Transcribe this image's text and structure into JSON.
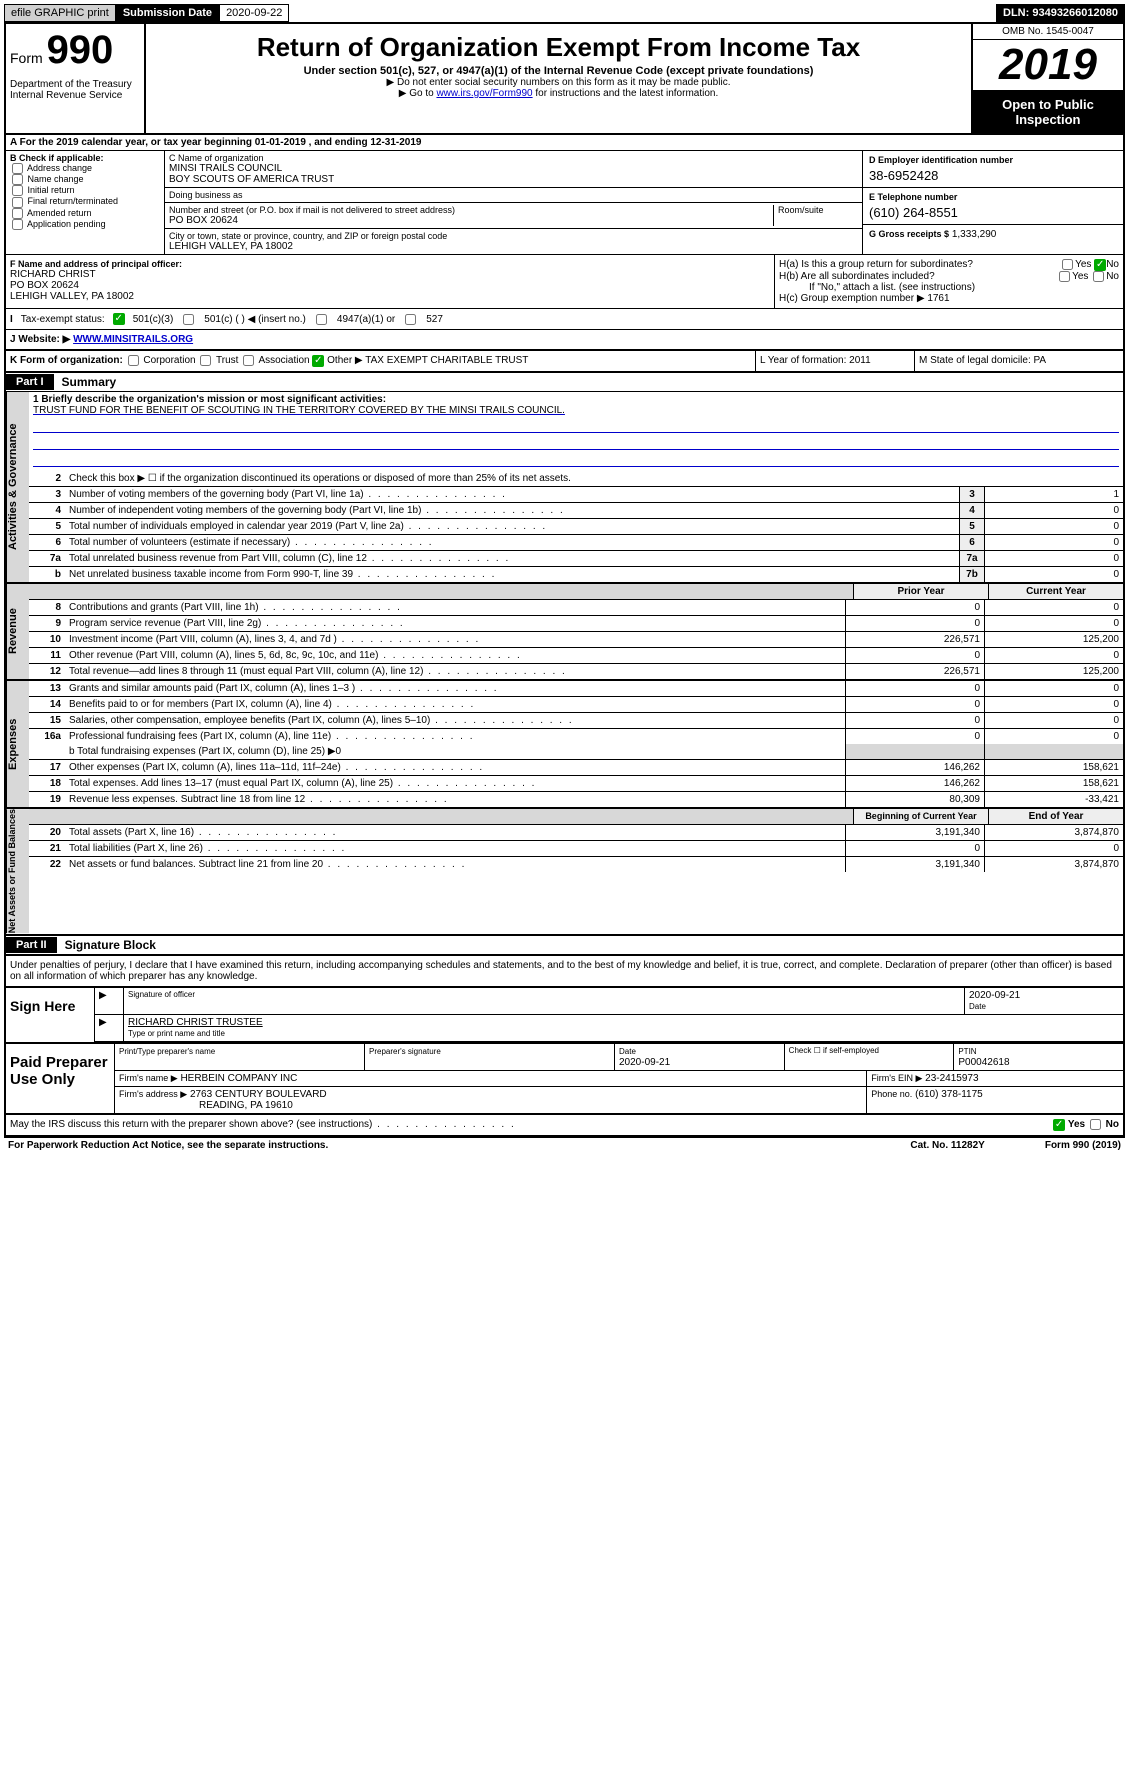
{
  "topbar": {
    "efile": "efile GRAPHIC print",
    "submit_label": "Submission Date",
    "submit_date": "2020-09-22",
    "dln": "DLN: 93493266012080"
  },
  "header": {
    "form": "Form",
    "formnum": "990",
    "dept": "Department of the Treasury\nInternal Revenue Service",
    "title": "Return of Organization Exempt From Income Tax",
    "sub1": "Under section 501(c), 527, or 4947(a)(1) of the Internal Revenue Code (except private foundations)",
    "sub2": "▶ Do not enter social security numbers on this form as it may be made public.",
    "sub3_pre": "▶ Go to ",
    "sub3_link": "www.irs.gov/Form990",
    "sub3_post": " for instructions and the latest information.",
    "omb": "OMB No. 1545-0047",
    "year": "2019",
    "openpub": "Open to Public Inspection"
  },
  "A": {
    "text_pre": "A For the 2019 calendar year, or tax year beginning ",
    "begin": "01-01-2019",
    "mid": " , and ending ",
    "end": "12-31-2019"
  },
  "B": {
    "header": "B Check if applicable:",
    "opts": [
      "Address change",
      "Name change",
      "Initial return",
      "Final return/terminated",
      "Amended return",
      "Application pending"
    ]
  },
  "C": {
    "name_label": "C Name of organization",
    "name1": "MINSI TRAILS COUNCIL",
    "name2": "BOY SCOUTS OF AMERICA TRUST",
    "dba_label": "Doing business as",
    "street_label": "Number and street (or P.O. box if mail is not delivered to street address)",
    "room_label": "Room/suite",
    "street": "PO BOX 20624",
    "city_label": "City or town, state or province, country, and ZIP or foreign postal code",
    "city": "LEHIGH VALLEY, PA  18002"
  },
  "D": {
    "label": "D Employer identification number",
    "val": "38-6952428"
  },
  "E": {
    "label": "E Telephone number",
    "val": "(610) 264-8551"
  },
  "G": {
    "label": "G Gross receipts $",
    "val": "1,333,290"
  },
  "F": {
    "label": "F  Name and address of principal officer:",
    "name": "RICHARD CHRIST",
    "addr1": "PO BOX 20624",
    "addr2": "LEHIGH VALLEY, PA  18002"
  },
  "H": {
    "a": "H(a)  Is this a group return for subordinates?",
    "b": "H(b)  Are all subordinates included?",
    "b_note": "If \"No,\" attach a list. (see instructions)",
    "c": "H(c)  Group exemption number ▶",
    "c_val": "1761",
    "yes": "Yes",
    "no": "No"
  },
  "I": {
    "label": "Tax-exempt status:",
    "o1": "501(c)(3)",
    "o2": "501(c) (   ) ◀ (insert no.)",
    "o3": "4947(a)(1) or",
    "o4": "527"
  },
  "J": {
    "label": "Website: ▶",
    "val": "WWW.MINSITRAILS.ORG"
  },
  "K": {
    "left_label": "K Form of organization:",
    "opts": [
      "Corporation",
      "Trust",
      "Association",
      "Other ▶"
    ],
    "other_val": "TAX EXEMPT CHARITABLE TRUST",
    "L": "L Year of formation: 2011",
    "M": "M State of legal domicile: PA"
  },
  "part1": {
    "bar": "Part I",
    "title": "Summary"
  },
  "summary": {
    "l1_label": "1  Briefly describe the organization's mission or most significant activities:",
    "l1_text": "TRUST FUND FOR THE BENEFIT OF SCOUTING IN THE TERRITORY COVERED BY THE MINSI TRAILS COUNCIL.",
    "l2": "Check this box ▶ ☐  if the organization discontinued its operations or disposed of more than 25% of its net assets.",
    "rows_gov": [
      {
        "n": "3",
        "t": "Number of voting members of the governing body (Part VI, line 1a)",
        "box": "3",
        "v": "1"
      },
      {
        "n": "4",
        "t": "Number of independent voting members of the governing body (Part VI, line 1b)",
        "box": "4",
        "v": "0"
      },
      {
        "n": "5",
        "t": "Total number of individuals employed in calendar year 2019 (Part V, line 2a)",
        "box": "5",
        "v": "0"
      },
      {
        "n": "6",
        "t": "Total number of volunteers (estimate if necessary)",
        "box": "6",
        "v": "0"
      },
      {
        "n": "7a",
        "t": "Total unrelated business revenue from Part VIII, column (C), line 12",
        "box": "7a",
        "v": "0"
      },
      {
        "n": "b",
        "t": "Net unrelated business taxable income from Form 990-T, line 39",
        "box": "7b",
        "v": "0"
      }
    ],
    "dual_hdr": {
      "prior": "Prior Year",
      "current": "Current Year"
    },
    "rows_rev": [
      {
        "n": "8",
        "t": "Contributions and grants (Part VIII, line 1h)",
        "p": "0",
        "c": "0"
      },
      {
        "n": "9",
        "t": "Program service revenue (Part VIII, line 2g)",
        "p": "0",
        "c": "0"
      },
      {
        "n": "10",
        "t": "Investment income (Part VIII, column (A), lines 3, 4, and 7d )",
        "p": "226,571",
        "c": "125,200"
      },
      {
        "n": "11",
        "t": "Other revenue (Part VIII, column (A), lines 5, 6d, 8c, 9c, 10c, and 11e)",
        "p": "0",
        "c": "0"
      },
      {
        "n": "12",
        "t": "Total revenue—add lines 8 through 11 (must equal Part VIII, column (A), line 12)",
        "p": "226,571",
        "c": "125,200"
      }
    ],
    "rows_exp": [
      {
        "n": "13",
        "t": "Grants and similar amounts paid (Part IX, column (A), lines 1–3 )",
        "p": "0",
        "c": "0"
      },
      {
        "n": "14",
        "t": "Benefits paid to or for members (Part IX, column (A), line 4)",
        "p": "0",
        "c": "0"
      },
      {
        "n": "15",
        "t": "Salaries, other compensation, employee benefits (Part IX, column (A), lines 5–10)",
        "p": "0",
        "c": "0"
      },
      {
        "n": "16a",
        "t": "Professional fundraising fees (Part IX, column (A), line 11e)",
        "p": "0",
        "c": "0"
      }
    ],
    "l16b": "b  Total fundraising expenses (Part IX, column (D), line 25) ▶0",
    "rows_exp2": [
      {
        "n": "17",
        "t": "Other expenses (Part IX, column (A), lines 11a–11d, 11f–24e)",
        "p": "146,262",
        "c": "158,621"
      },
      {
        "n": "18",
        "t": "Total expenses. Add lines 13–17 (must equal Part IX, column (A), line 25)",
        "p": "146,262",
        "c": "158,621"
      },
      {
        "n": "19",
        "t": "Revenue less expenses. Subtract line 18 from line 12",
        "p": "80,309",
        "c": "-33,421"
      }
    ],
    "dual_hdr2": {
      "prior": "Beginning of Current Year",
      "current": "End of Year"
    },
    "rows_net": [
      {
        "n": "20",
        "t": "Total assets (Part X, line 16)",
        "p": "3,191,340",
        "c": "3,874,870"
      },
      {
        "n": "21",
        "t": "Total liabilities (Part X, line 26)",
        "p": "0",
        "c": "0"
      },
      {
        "n": "22",
        "t": "Net assets or fund balances. Subtract line 21 from line 20",
        "p": "3,191,340",
        "c": "3,874,870"
      }
    ],
    "sidecaps": {
      "gov": "Activities & Governance",
      "rev": "Revenue",
      "exp": "Expenses",
      "net": "Net Assets or Fund Balances"
    }
  },
  "part2": {
    "bar": "Part II",
    "title": "Signature Block"
  },
  "perjury": "Under penalties of perjury, I declare that I have examined this return, including accompanying schedules and statements, and to the best of my knowledge and belief, it is true, correct, and complete. Declaration of preparer (other than officer) is based on all information of which preparer has any knowledge.",
  "sign": {
    "here": "Sign Here",
    "sig_label": "Signature of officer",
    "date": "2020-09-21",
    "date_label": "Date",
    "name": "RICHARD CHRIST  TRUSTEE",
    "name_label": "Type or print name and title"
  },
  "prep": {
    "label": "Paid Preparer Use Only",
    "h_name": "Print/Type preparer's name",
    "h_sig": "Preparer's signature",
    "h_date": "Date",
    "date": "2020-09-21",
    "check_label": "Check ☐ if self-employed",
    "ptin_label": "PTIN",
    "ptin": "P00042618",
    "firm_label": "Firm's name    ▶",
    "firm": "HERBEIN COMPANY INC",
    "ein_label": "Firm's EIN ▶",
    "ein": "23-2415973",
    "addr_label": "Firm's address ▶",
    "addr1": "2763 CENTURY BOULEVARD",
    "addr2": "READING, PA  19610",
    "phone_label": "Phone no.",
    "phone": "(610) 378-1175"
  },
  "discuss": "May the IRS discuss this return with the preparer shown above? (see instructions)",
  "footer": {
    "left": "For Paperwork Reduction Act Notice, see the separate instructions.",
    "mid": "Cat. No. 11282Y",
    "right": "Form 990 (2019)"
  }
}
